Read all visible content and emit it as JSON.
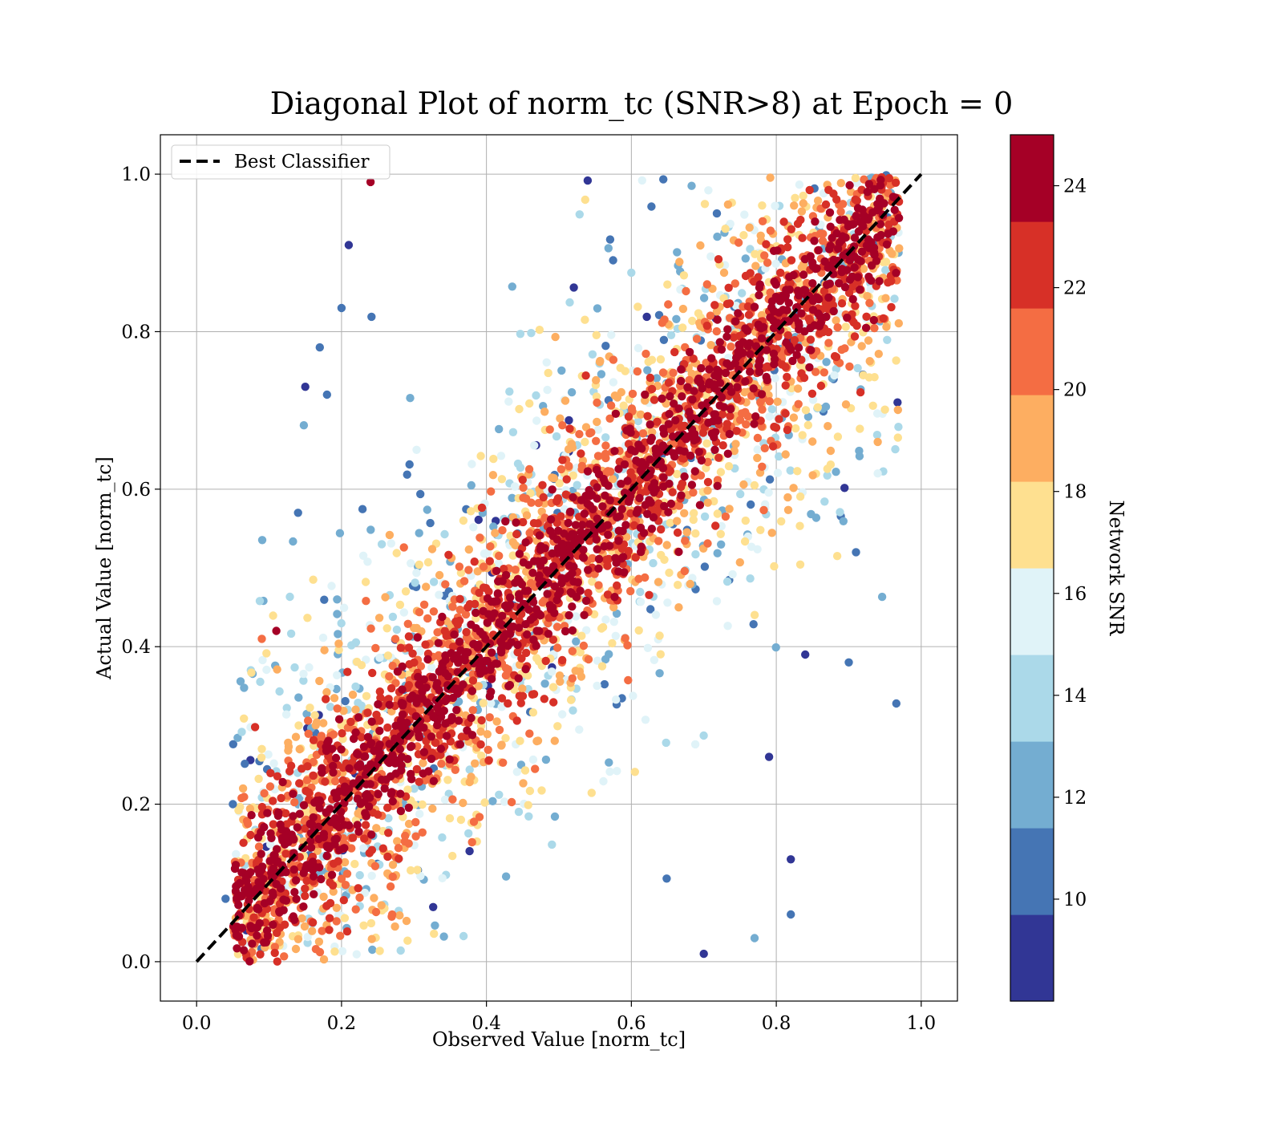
{
  "chart_data": {
    "type": "scatter",
    "title": "Diagonal Plot of norm_tc (SNR>8) at Epoch = 0",
    "xlabel": "Observed Value [norm_tc]",
    "ylabel": "Actual Value [norm_tc]",
    "xlim": [
      -0.05,
      1.05
    ],
    "ylim": [
      -0.05,
      1.05
    ],
    "x_ticks": [
      "0.0",
      "0.2",
      "0.4",
      "0.6",
      "0.8",
      "1.0"
    ],
    "y_ticks": [
      "0.0",
      "0.2",
      "0.4",
      "0.6",
      "0.8",
      "1.0"
    ],
    "grid": true,
    "legend": {
      "placement": "upper left",
      "entries": [
        "Best Classifier"
      ]
    },
    "reference_line": {
      "name": "Best Classifier",
      "x": [
        0.0,
        1.0
      ],
      "y": [
        0.0,
        1.0
      ],
      "style": "dashed",
      "color": "#000000"
    },
    "colorbar": {
      "label": "Network SNR",
      "min": 8.0,
      "max": 25.0,
      "ticks": [
        "10",
        "12",
        "14",
        "16",
        "18",
        "20",
        "22",
        "24"
      ],
      "colors": [
        "#313695",
        "#4575b4",
        "#74add1",
        "#abd9e9",
        "#e0f3f8",
        "#fee090",
        "#fdae61",
        "#f46d43",
        "#d73027",
        "#a50026"
      ]
    },
    "points_description_values": {
      "x_range": [
        0.04,
        0.97
      ],
      "y_range": [
        0.0,
        1.0
      ],
      "outlier_points": [
        {
          "x": 0.24,
          "y": 0.99,
          "snr": 24
        },
        {
          "x": 0.21,
          "y": 0.91,
          "snr": 9
        },
        {
          "x": 0.2,
          "y": 0.83,
          "snr": 11
        },
        {
          "x": 0.17,
          "y": 0.78,
          "snr": 10
        },
        {
          "x": 0.18,
          "y": 0.72,
          "snr": 10
        },
        {
          "x": 0.15,
          "y": 0.73,
          "snr": 9
        },
        {
          "x": 0.14,
          "y": 0.57,
          "snr": 11
        },
        {
          "x": 0.91,
          "y": 0.52,
          "snr": 10
        },
        {
          "x": 0.9,
          "y": 0.38,
          "snr": 10
        },
        {
          "x": 0.84,
          "y": 0.39,
          "snr": 9
        },
        {
          "x": 0.79,
          "y": 0.26,
          "snr": 9
        },
        {
          "x": 0.82,
          "y": 0.13,
          "snr": 9
        },
        {
          "x": 0.82,
          "y": 0.06,
          "snr": 11
        },
        {
          "x": 0.77,
          "y": 0.03,
          "snr": 12
        },
        {
          "x": 0.7,
          "y": 0.01,
          "snr": 9
        },
        {
          "x": 0.04,
          "y": 0.08,
          "snr": 11
        },
        {
          "x": 0.05,
          "y": 0.2,
          "snr": 10
        },
        {
          "x": 0.09,
          "y": 0.41,
          "snr": 21
        },
        {
          "x": 0.11,
          "y": 0.42,
          "snr": 24
        },
        {
          "x": 0.94,
          "y": 0.62,
          "snr": 16
        },
        {
          "x": 0.94,
          "y": 0.66,
          "snr": 19
        }
      ]
    }
  }
}
